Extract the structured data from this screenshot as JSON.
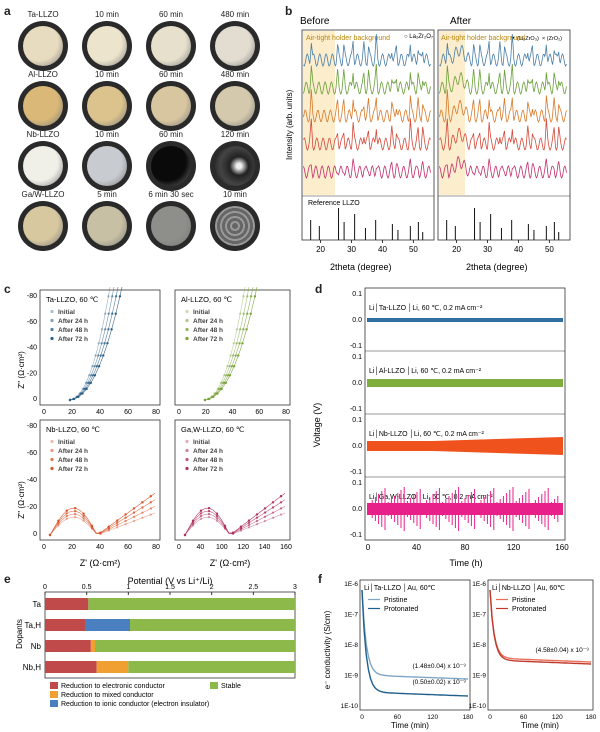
{
  "panel_a": {
    "label": "a",
    "rows": [
      {
        "name": "Ta-LLZO",
        "times": [
          "10 min",
          "60 min",
          "480 min"
        ]
      },
      {
        "name": "Al-LLZO",
        "times": [
          "10 min",
          "60 min",
          "480 min"
        ]
      },
      {
        "name": "Nb-LLZO",
        "times": [
          "10 min",
          "60 min",
          "120 min"
        ]
      },
      {
        "name": "Ga/W-LLZO",
        "times": [
          "5 min",
          "6 min 30 sec",
          "10 min"
        ]
      }
    ]
  },
  "panel_b": {
    "label": "b",
    "before_title": "Before",
    "after_title": "After",
    "holder_label": "Air-tight holder background",
    "legend_la": "La₂Zr₂O₇",
    "legend_li": "(Li₂ZrO₃)",
    "legend_zr": "(ZrO₂)",
    "ylabel": "Intensity (arb. units)",
    "ref_label": "Reference LLZO",
    "xlabel": "2theta (degree)",
    "xticks": [
      "20",
      "30",
      "40",
      "50"
    ]
  },
  "panel_c": {
    "label": "c",
    "ylabel": "Z'' (Ω·cm²)",
    "xlabel": "Z' (Ω·cm²)",
    "legend": [
      "Initial",
      "After 24 h",
      "After 48 h",
      "After 72 h"
    ],
    "subplots": [
      {
        "title": "Ta-LLZO, 60 ℃",
        "xticks": [
          "0",
          "20",
          "40",
          "60",
          "80"
        ],
        "yticks": [
          "-80",
          "-60",
          "-40",
          "-20",
          "0"
        ]
      },
      {
        "title": "Al-LLZO, 60 ℃",
        "xticks": [
          "0",
          "20",
          "40",
          "60",
          "80"
        ],
        "yticks": []
      },
      {
        "title": "Nb-LLZO, 60 ℃",
        "xticks": [
          "0",
          "20",
          "40",
          "60",
          "80"
        ],
        "yticks": [
          "-80",
          "-60",
          "-40",
          "-20",
          "0"
        ]
      },
      {
        "title": "Ga,W-LLZO, 60 ℃",
        "xticks": [
          "0",
          "40",
          "100",
          "120",
          "140",
          "160"
        ],
        "yticks": []
      }
    ],
    "colors": {
      "ta": "#2d5f86",
      "al": "#7aa33a",
      "nb": "#d9542b",
      "ga": "#b03060"
    }
  },
  "panel_d": {
    "label": "d",
    "ylabel": "Voltage (V)",
    "xlabel": "Time (h)",
    "xticks": [
      "0",
      "40",
      "80",
      "120",
      "160"
    ],
    "yticks": [
      "0.1",
      "0.0",
      "-0.1"
    ],
    "traces": [
      {
        "title": "Li│Ta-LLZO │Li, 60 ℃, 0.2 mA cm⁻²",
        "color": "#2e6fa0"
      },
      {
        "title": "Li│Al-LLZO │Li, 60 ℃, 0.2 mA cm⁻²",
        "color": "#7fae3c"
      },
      {
        "title": "Li│Nb-LLZO │Li, 60 ℃, 0.2 mA cm⁻²",
        "color": "#f0521e"
      },
      {
        "title": "Li│Ga,W-LLZO │Li, 60 ℃, 0.2 mA cm⁻²",
        "color": "#e8208a"
      }
    ]
  },
  "panel_e": {
    "label": "e",
    "title": "Potential (V vs Li⁺/Li)",
    "ylabel": "Dopants",
    "xticks": [
      "0",
      "0.5",
      "1",
      "1.5",
      "2",
      "2.5",
      "3"
    ],
    "bars": [
      {
        "name": "Ta",
        "segments": [
          {
            "type": "red",
            "end": 0.52
          },
          {
            "type": "green",
            "end": 3.0
          }
        ]
      },
      {
        "name": "Ta,H",
        "segments": [
          {
            "type": "red",
            "end": 0.48
          },
          {
            "type": "blue",
            "end": 1.02
          },
          {
            "type": "green",
            "end": 3.0
          }
        ]
      },
      {
        "name": "Nb",
        "segments": [
          {
            "type": "red",
            "end": 0.55
          },
          {
            "type": "orange",
            "end": 0.6
          },
          {
            "type": "green",
            "end": 3.0
          }
        ]
      },
      {
        "name": "Nb,H",
        "segments": [
          {
            "type": "red",
            "end": 0.62
          },
          {
            "type": "orange",
            "end": 1.0
          },
          {
            "type": "green",
            "end": 3.0
          }
        ]
      }
    ],
    "legend": [
      {
        "type": "red",
        "text": "Reduction to electronic conductor"
      },
      {
        "type": "orange",
        "text": "Reduction to mixed conductor"
      },
      {
        "type": "blue",
        "text": "Reduction to ionic conductor (electron insulator)"
      },
      {
        "type": "green",
        "text": "Stable"
      }
    ],
    "colors": {
      "red": "#c04a4a",
      "orange": "#f0a030",
      "blue": "#4a7fc0",
      "green": "#8db84a"
    }
  },
  "panel_f": {
    "label": "f",
    "ylabel": "e⁻ conductivity (S/cm)",
    "xlabel": "Time (min)",
    "yticks": [
      "1E-6",
      "1E-7",
      "1E-8",
      "1E-9",
      "1E-10"
    ],
    "xticks": [
      "0",
      "60",
      "120",
      "180"
    ],
    "left": {
      "title": "Li│Ta-LLZO │Au, 60℃",
      "legend": [
        "Pristine",
        "Protonated"
      ],
      "ann1": "(1.48±0.04) x 10⁻⁹",
      "ann2": "(0.50±0.02) x 10⁻⁹"
    },
    "right": {
      "title": "Li│Nb-LLZO │Au, 60℃",
      "legend": [
        "Pristine",
        "Protonated"
      ],
      "ann1": "(4.58±0.04) x 10⁻⁹"
    }
  }
}
